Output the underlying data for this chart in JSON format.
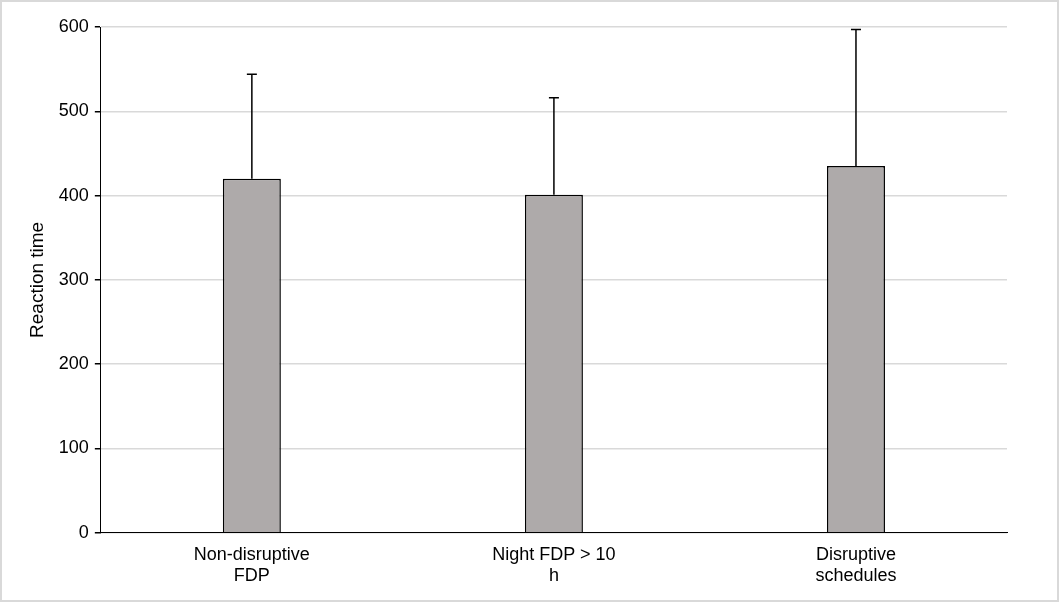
{
  "chart_data": {
    "type": "bar",
    "ylabel": "Reaction time",
    "categories": [
      "Non-disruptive FDP",
      "Night FDP > 10 h",
      "Disruptive schedules"
    ],
    "values": [
      420,
      401,
      435
    ],
    "errors": [
      [
        420,
        544
      ],
      [
        401,
        516
      ],
      [
        435,
        597
      ]
    ],
    "color": "#aeaaaa",
    "ylim": [
      0,
      600
    ],
    "yticks": [
      0,
      100,
      200,
      300,
      400,
      500,
      600
    ],
    "grid": "y",
    "legend": false
  }
}
